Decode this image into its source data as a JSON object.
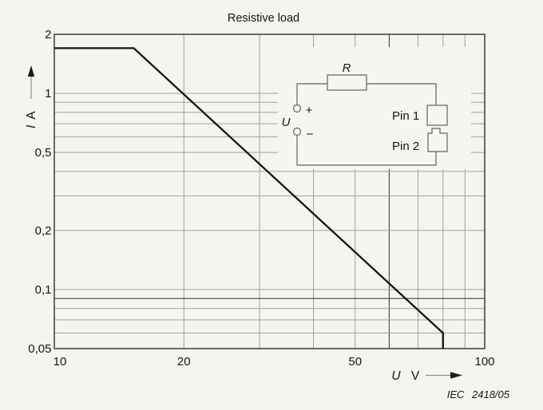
{
  "title": "Resistive load",
  "caption": "IEC 2418/05",
  "colors": {
    "background": "#f5f4ee",
    "grid": "#a6a29b",
    "grid_dark": "#45443f",
    "plot_border": "#3a3936",
    "curve": "#161513",
    "circuit": "#63625e",
    "text": "#161513"
  },
  "chart_data": {
    "type": "line",
    "title": "Resistive load",
    "x_axis": {
      "symbol": "U",
      "unit": "V",
      "scale": "log",
      "min": 10,
      "max": 100,
      "ticks": [
        {
          "v": 10,
          "label": "10",
          "dx": 7
        },
        {
          "v": 20,
          "label": "20"
        },
        {
          "v": 50,
          "label": "50"
        },
        {
          "v": 100,
          "label": "100"
        }
      ],
      "gridlines": [
        {
          "v": 20
        },
        {
          "v": 30
        },
        {
          "v": 40
        },
        {
          "v": 50
        },
        {
          "v": 60,
          "dark": true
        },
        {
          "v": 70
        },
        {
          "v": 80
        },
        {
          "v": 90
        }
      ]
    },
    "y_axis": {
      "symbol": "I",
      "unit": "A",
      "scale": "log",
      "min": 0.05,
      "max": 2,
      "ticks": [
        {
          "v": 2,
          "label": "2"
        },
        {
          "v": 1,
          "label": "1"
        },
        {
          "v": 0.5,
          "label": "0,5"
        },
        {
          "v": 0.2,
          "label": "0,2"
        },
        {
          "v": 0.1,
          "label": "0,1"
        },
        {
          "v": 0.05,
          "label": "0,05"
        }
      ],
      "gridlines": [
        {
          "v": 1
        },
        {
          "v": 0.9
        },
        {
          "v": 0.8
        },
        {
          "v": 0.7
        },
        {
          "v": 0.6
        },
        {
          "v": 0.5
        },
        {
          "v": 0.4
        },
        {
          "v": 0.3
        },
        {
          "v": 0.2
        },
        {
          "v": 0.1
        },
        {
          "v": 0.09,
          "dark": true
        },
        {
          "v": 0.08
        },
        {
          "v": 0.07
        },
        {
          "v": 0.06
        }
      ]
    },
    "series": [
      {
        "points": [
          [
            10,
            1.7
          ],
          [
            15.3,
            1.7
          ],
          [
            80,
            0.06
          ],
          [
            80,
            0.05
          ]
        ]
      }
    ]
  },
  "inset_circuit": {
    "resistor_label": "R",
    "source_label": "U",
    "plus_label": "+",
    "minus_label": "−",
    "pin1_label": "Pin 1",
    "pin2_label": "Pin 2"
  }
}
